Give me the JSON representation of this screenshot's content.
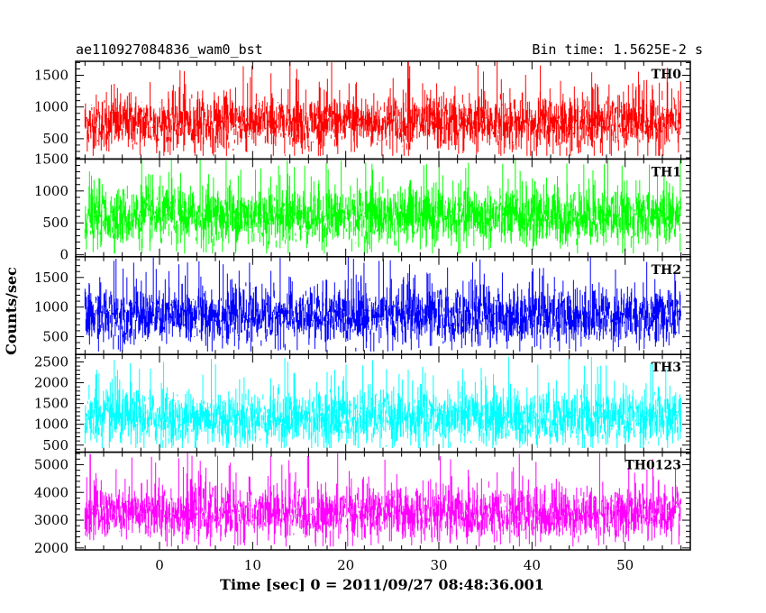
{
  "chart_data": {
    "type": "line",
    "title": "ae110927084836_wam0_bst",
    "subtitle": "Bin time: 1.5625E-2 s",
    "xlabel": "Time [sec] 0 = 2011/09/27 08:48:36.001",
    "ylabel": "Counts/sec",
    "xlim": [
      -9,
      57
    ],
    "data_range": [
      -8,
      56
    ],
    "xticks": [
      0,
      10,
      20,
      30,
      40,
      50
    ],
    "x_minor_step": 2,
    "grid": false,
    "series": [
      {
        "name": "TH0",
        "color": "#ff0000",
        "ylim": [
          180,
          1720
        ],
        "yticks": [
          500,
          1000,
          1500
        ],
        "y_minor_step": 100,
        "mean": 750,
        "sd": 220,
        "min": 230,
        "max": 1720
      },
      {
        "name": "TH1",
        "color": "#00ff00",
        "ylim": [
          -30,
          1500
        ],
        "yticks": [
          0,
          500,
          1000,
          1500
        ],
        "y_minor_step": 100,
        "mean": 600,
        "sd": 230,
        "min": 20,
        "max": 1500
      },
      {
        "name": "TH2",
        "color": "#0000ff",
        "ylim": [
          200,
          1850
        ],
        "yticks": [
          500,
          1000,
          1500
        ],
        "y_minor_step": 100,
        "mean": 850,
        "sd": 240,
        "min": 250,
        "max": 1850
      },
      {
        "name": "TH3",
        "color": "#00ffff",
        "ylim": [
          330,
          2680
        ],
        "yticks": [
          500,
          1000,
          1500,
          2000,
          2500
        ],
        "y_minor_step": 100,
        "mean": 1150,
        "sd": 330,
        "min": 430,
        "max": 2680
      },
      {
        "name": "TH0123",
        "color": "#ff00ff",
        "ylim": [
          1930,
          5450
        ],
        "yticks": [
          2000,
          3000,
          4000,
          5000
        ],
        "y_minor_step": 200,
        "mean": 3250,
        "sd": 480,
        "min": 2050,
        "max": 5450
      }
    ]
  }
}
